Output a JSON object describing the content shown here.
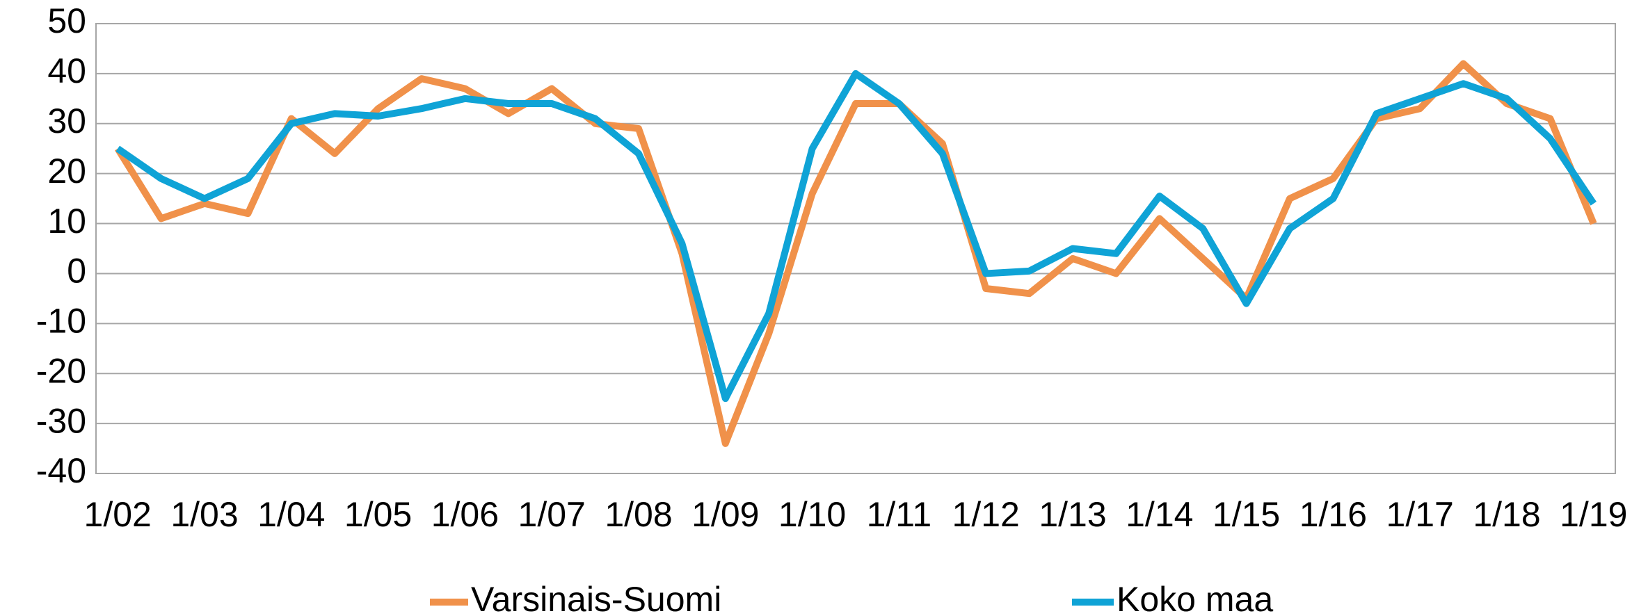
{
  "chart_data": {
    "type": "line",
    "categories": [
      "1/02",
      null,
      "1/03",
      null,
      "1/04",
      null,
      "1/05",
      null,
      "1/06",
      null,
      "1/07",
      null,
      "1/08",
      null,
      "1/09",
      null,
      "1/10",
      null,
      "1/11",
      null,
      "1/12",
      null,
      "1/13",
      null,
      "1/14",
      null,
      "1/15",
      null,
      "1/16",
      null,
      "1/17",
      null,
      "1/18",
      null,
      "1/19"
    ],
    "series": [
      {
        "name": "Varsinais-Suomi",
        "color": "#f0914a",
        "values": [
          25,
          11,
          14,
          12,
          31,
          24,
          33,
          39,
          37,
          32,
          37,
          30,
          29,
          4,
          -34,
          -12,
          16,
          34,
          34,
          26,
          -3,
          -4,
          3,
          0,
          11,
          3,
          -5,
          15,
          19,
          31,
          33,
          42,
          34,
          31,
          10
        ]
      },
      {
        "name": "Koko maa",
        "color": "#0fa3d6",
        "values": [
          25,
          19,
          15,
          19,
          30,
          32,
          31.5,
          33,
          35,
          34,
          34,
          31,
          24,
          6,
          -25,
          -8,
          25,
          40,
          34,
          24,
          0,
          0.5,
          5,
          4,
          15.5,
          9,
          -6,
          9,
          15,
          32,
          35,
          38,
          35,
          27,
          14
        ]
      }
    ],
    "ylim": [
      -40,
      50
    ],
    "yticks": [
      -40,
      -30,
      -20,
      -10,
      0,
      10,
      20,
      30,
      40,
      50
    ],
    "grid": true
  }
}
